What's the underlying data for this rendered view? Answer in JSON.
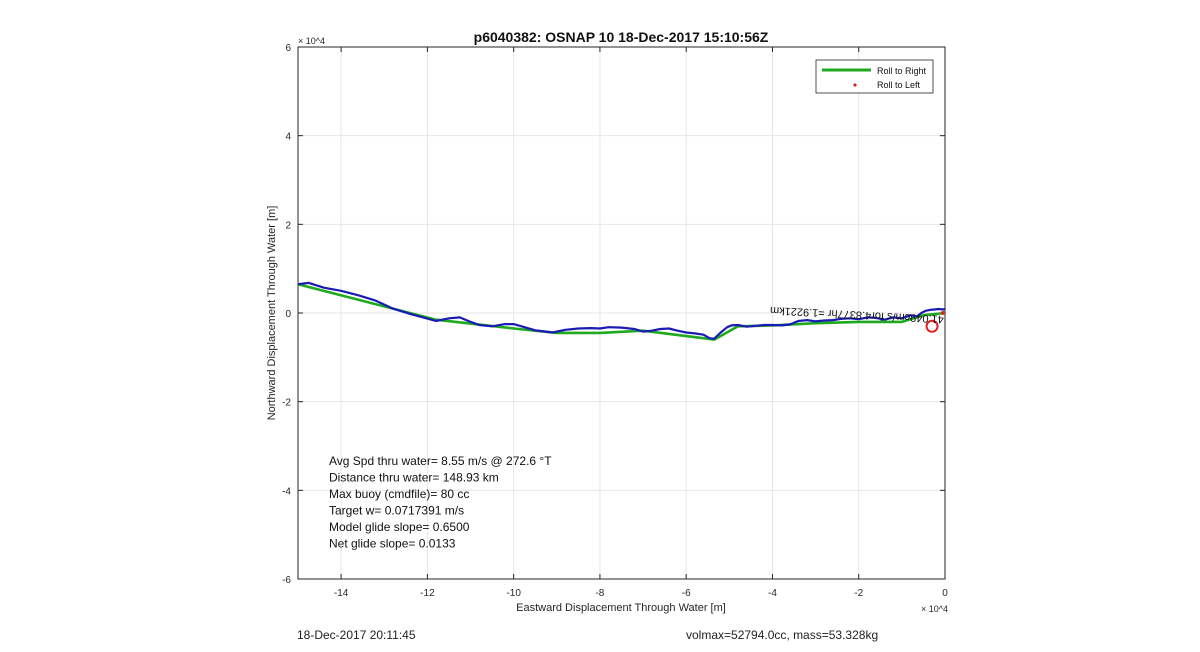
{
  "chart_data": {
    "type": "line",
    "title": "p6040382: OSNAP 10 18-Dec-2017 15:10:56Z",
    "xlabel": "Eastward Displacement Through Water [m]",
    "ylabel": "Northward Displacement Through Water [m]",
    "xlim": [
      -150000,
      0
    ],
    "ylim": [
      -60000,
      60000
    ],
    "x_exponent_label": "× 10^4",
    "y_exponent_label": "× 10^4",
    "x_ticks": [
      -140000,
      -120000,
      -100000,
      -80000,
      -60000,
      -40000,
      -20000,
      0
    ],
    "x_tick_labels": [
      "-14",
      "-12",
      "-10",
      "-8",
      "-6",
      "-4",
      "-2",
      "0"
    ],
    "y_ticks": [
      -60000,
      -40000,
      -20000,
      0,
      20000,
      40000,
      60000
    ],
    "y_tick_labels": [
      "-6",
      "-4",
      "-2",
      "0",
      "2",
      "4",
      "6"
    ],
    "grid": true,
    "legend_position": "top-right",
    "series": [
      {
        "name": "Roll to Right",
        "color": "#1fa91f",
        "x": [
          -150000,
          -118000,
          -100000,
          -90000,
          -80000,
          -70000,
          -53500,
          -48000,
          -40000,
          -30000,
          -20000,
          -10000,
          -5000,
          0
        ],
        "y": [
          6500,
          -1500,
          -3500,
          -4500,
          -4500,
          -4000,
          -6000,
          -3000,
          -2800,
          -2300,
          -2000,
          -2000,
          -500,
          0
        ]
      },
      {
        "name": "Roll to Left",
        "color": "#dd2222",
        "x": [],
        "y": []
      },
      {
        "name": "",
        "color": "#1a1ab4",
        "x": [
          -150000,
          -147500,
          -144000,
          -140000,
          -136000,
          -132000,
          -128000,
          -124000,
          -121000,
          -118000,
          -115000,
          -112500,
          -110500,
          -108000,
          -105000,
          -102000,
          -100000,
          -97500,
          -95000,
          -92500,
          -91000,
          -88000,
          -85000,
          -82000,
          -80000,
          -78000,
          -75000,
          -72000,
          -70000,
          -68000,
          -66000,
          -64000,
          -62000,
          -60000,
          -58000,
          -56000,
          -54500,
          -53500,
          -52000,
          -50500,
          -49500,
          -48000,
          -46000,
          -44000,
          -42000,
          -40000,
          -38000,
          -36000,
          -34000,
          -32000,
          -30000,
          -28000,
          -26000,
          -24000,
          -22000,
          -20000,
          -18000,
          -16000,
          -14000,
          -12000,
          -10000,
          -8000,
          -6500,
          -5500,
          -4500,
          -3500,
          -2500,
          -1500,
          -500,
          0
        ],
        "y": [
          6500,
          6800,
          5700,
          5000,
          4000,
          2800,
          1000,
          -200,
          -1000,
          -1800,
          -1200,
          -1000,
          -1800,
          -2700,
          -3000,
          -2500,
          -2500,
          -3200,
          -3900,
          -4200,
          -4400,
          -3800,
          -3500,
          -3400,
          -3500,
          -3200,
          -3300,
          -3600,
          -4200,
          -4000,
          -3600,
          -3500,
          -4000,
          -4400,
          -4600,
          -4900,
          -5700,
          -5800,
          -4400,
          -3200,
          -2800,
          -2700,
          -3100,
          -2900,
          -2700,
          -2700,
          -2800,
          -2600,
          -1800,
          -1600,
          -1900,
          -1700,
          -1600,
          -1300,
          -1200,
          -1400,
          -1000,
          -1100,
          -1500,
          -1000,
          -1200,
          -500,
          -800,
          0,
          500,
          700,
          800,
          900,
          800,
          900
        ]
      }
    ],
    "annotations": {
      "stats": [
        "Avg Spd thru water=  8.55 m/s @ 272.6 °T",
        "Distance thru water= 148.93 km",
        "Max buoy (cmdfile)= 80 cc",
        "Target w= 0.0717391 m/s",
        "Model glide slope= 0.6500",
        "Net glide slope= 0.0133"
      ],
      "upside_down_label": "41.049cm/s for4.8377hr =1.9221km",
      "marker": {
        "x": -3000,
        "y": -3000,
        "color": "#dd2222"
      }
    }
  },
  "footer": {
    "left": "18-Dec-2017 20:11:45",
    "right": "volmax=52794.0cc, mass=53.328kg"
  }
}
